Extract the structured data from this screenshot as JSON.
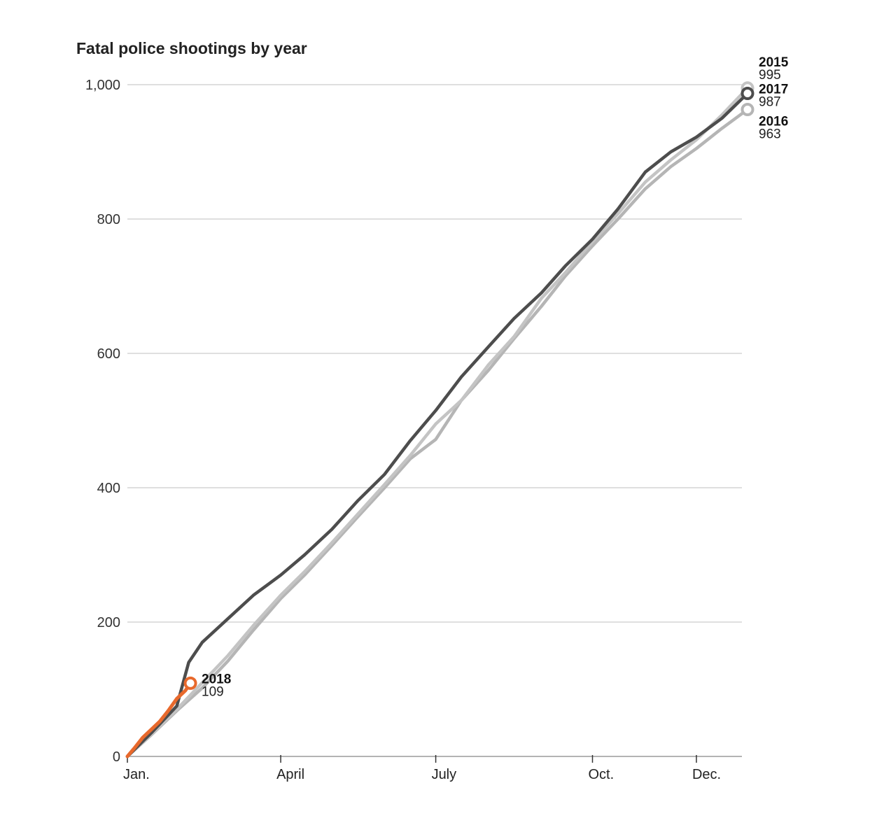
{
  "chart_data": {
    "type": "line",
    "title": "Fatal police shootings by year",
    "xlabel": "",
    "ylabel": "",
    "x_tick_labels": [
      "Jan.",
      "April",
      "July",
      "Oct.",
      "Dec."
    ],
    "x_tick_days": [
      1,
      91,
      182,
      274,
      335
    ],
    "x_range_days": [
      1,
      365
    ],
    "ylim": [
      0,
      1000
    ],
    "yticks": [
      0,
      200,
      400,
      600,
      800,
      1000
    ],
    "ytick_labels": [
      "0",
      "200",
      "400",
      "600",
      "800",
      "1,000"
    ],
    "grid": "horizontal",
    "series": [
      {
        "name": "2015",
        "end_label": "995",
        "color": "#c4c4c4",
        "x_days": [
          1,
          15,
          30,
          45,
          60,
          75,
          91,
          105,
          121,
          136,
          152,
          167,
          182,
          197,
          213,
          228,
          244,
          258,
          274,
          289,
          305,
          320,
          335,
          350,
          365
        ],
        "values": [
          0,
          33,
          70,
          110,
          150,
          195,
          240,
          275,
          318,
          360,
          405,
          448,
          495,
          530,
          583,
          625,
          682,
          720,
          766,
          808,
          855,
          888,
          918,
          955,
          995
        ]
      },
      {
        "name": "2016",
        "end_label": "963",
        "color": "#b5b5b5",
        "x_days": [
          1,
          15,
          30,
          45,
          60,
          75,
          91,
          105,
          121,
          136,
          152,
          167,
          182,
          197,
          213,
          228,
          244,
          258,
          274,
          289,
          305,
          320,
          335,
          350,
          365
        ],
        "values": [
          0,
          32,
          68,
          102,
          142,
          188,
          235,
          270,
          314,
          356,
          400,
          443,
          472,
          530,
          575,
          622,
          670,
          715,
          760,
          800,
          845,
          878,
          905,
          935,
          963
        ]
      },
      {
        "name": "2017",
        "end_label": "987",
        "color": "#4d4d4d",
        "x_days": [
          1,
          15,
          30,
          37,
          45,
          60,
          75,
          91,
          105,
          121,
          136,
          152,
          167,
          182,
          197,
          213,
          228,
          244,
          258,
          274,
          289,
          305,
          320,
          335,
          350,
          365
        ],
        "values": [
          0,
          35,
          75,
          140,
          170,
          205,
          240,
          270,
          300,
          338,
          380,
          420,
          470,
          515,
          565,
          610,
          652,
          690,
          730,
          770,
          815,
          870,
          900,
          922,
          950,
          987
        ]
      },
      {
        "name": "2018",
        "end_label": "109",
        "color": "#e8692c",
        "x_days": [
          1,
          5,
          10,
          15,
          20,
          25,
          30,
          35,
          38
        ],
        "values": [
          0,
          12,
          28,
          40,
          52,
          68,
          86,
          98,
          109
        ]
      }
    ]
  }
}
